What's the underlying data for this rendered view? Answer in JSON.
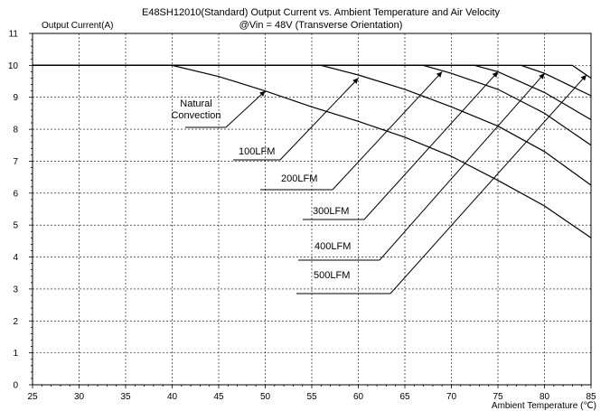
{
  "chart_data": {
    "type": "line",
    "title_line1": "E48SH12010(Standard)  Output Current vs. Ambient Temperature and Air Velocity",
    "title_line2": "@Vin = 48V (Transverse Orientation)",
    "ylabel": "Output Current(A)",
    "xlabel": "Ambient Temperature (℃)",
    "xlim": [
      25,
      85
    ],
    "ylim": [
      0,
      11
    ],
    "x_ticks": [
      25,
      30,
      35,
      40,
      45,
      50,
      55,
      60,
      65,
      70,
      75,
      80,
      85
    ],
    "y_ticks": [
      0,
      1,
      2,
      3,
      4,
      5,
      6,
      7,
      8,
      9,
      10,
      11
    ],
    "grid": true,
    "series": [
      {
        "name": "Natural Convection",
        "points": [
          [
            25,
            10
          ],
          [
            40,
            10
          ],
          [
            45,
            9.65
          ],
          [
            50,
            9.2
          ],
          [
            55,
            8.7
          ],
          [
            60,
            8.25
          ],
          [
            65,
            7.75
          ],
          [
            70,
            7.15
          ],
          [
            75,
            6.4
          ],
          [
            80,
            5.6
          ],
          [
            85,
            4.6
          ]
        ]
      },
      {
        "name": "100LFM",
        "points": [
          [
            25,
            10
          ],
          [
            56,
            10
          ],
          [
            60,
            9.7
          ],
          [
            65,
            9.25
          ],
          [
            70,
            8.7
          ],
          [
            75,
            8.1
          ],
          [
            80,
            7.3
          ],
          [
            85,
            6.25
          ]
        ]
      },
      {
        "name": "200LFM",
        "points": [
          [
            25,
            10
          ],
          [
            67,
            10
          ],
          [
            70,
            9.75
          ],
          [
            75,
            9.25
          ],
          [
            80,
            8.5
          ],
          [
            85,
            7.5
          ]
        ]
      },
      {
        "name": "300LFM",
        "points": [
          [
            25,
            10
          ],
          [
            72.5,
            10
          ],
          [
            75,
            9.8
          ],
          [
            80,
            9.15
          ],
          [
            85,
            8.3
          ]
        ]
      },
      {
        "name": "400LFM",
        "points": [
          [
            25,
            10
          ],
          [
            77.5,
            10
          ],
          [
            80,
            9.75
          ],
          [
            85,
            9.05
          ]
        ]
      },
      {
        "name": "500LFM",
        "points": [
          [
            25,
            10
          ],
          [
            83,
            10
          ],
          [
            85,
            9.6
          ]
        ]
      }
    ],
    "annotations": [
      {
        "text_lines": [
          "Natural",
          "Convection"
        ],
        "target": [
          50,
          9.2
        ]
      },
      {
        "text_lines": [
          "100LFM"
        ],
        "target": [
          60,
          9.6
        ]
      },
      {
        "text_lines": [
          "200LFM"
        ],
        "target": [
          69,
          9.8
        ]
      },
      {
        "text_lines": [
          "300LFM"
        ],
        "target": [
          75,
          9.8
        ]
      },
      {
        "text_lines": [
          "400LFM"
        ],
        "target": [
          80,
          9.75
        ]
      },
      {
        "text_lines": [
          "500LFM"
        ],
        "target": [
          84.5,
          9.7
        ]
      }
    ]
  }
}
